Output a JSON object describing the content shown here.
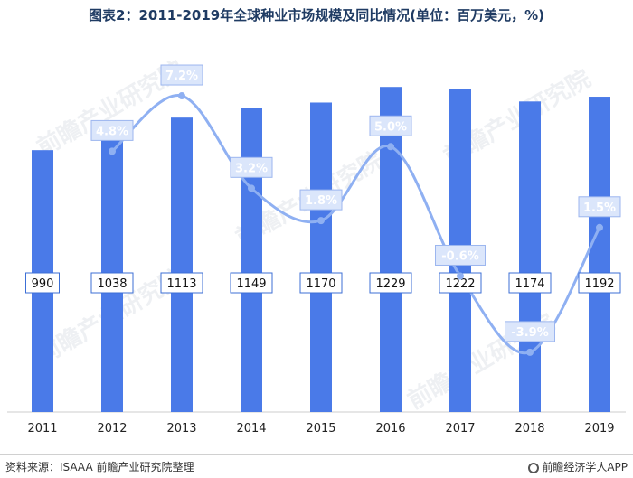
{
  "title": "图表2：2011-2019年全球种业市场规模及同比情况(单位：百万美元，%)",
  "chart_data": {
    "type": "bar",
    "categories": [
      "2011",
      "2012",
      "2013",
      "2014",
      "2015",
      "2016",
      "2017",
      "2018",
      "2019"
    ],
    "series": [
      {
        "values": [
          990,
          1038,
          1113,
          1149,
          1170,
          1229,
          1222,
          1174,
          1192
        ],
        "value_labels": [
          "990",
          "1038",
          "1113",
          "1149",
          "1170",
          "1229",
          "1222",
          "1174",
          "1192"
        ],
        "color": "#4a7ae8"
      },
      {
        "type": "line",
        "values": [
          null,
          4.8,
          7.2,
          3.2,
          1.8,
          5.0,
          -0.6,
          -3.9,
          1.5
        ],
        "value_labels": [
          null,
          "4.8%",
          "7.2%",
          "3.2%",
          "1.8%",
          "5.0%",
          "-0.6%",
          "-3.9%",
          "1.5%"
        ],
        "color": "#8fb0f2"
      }
    ],
    "ylim_bar": [
      0,
      1380
    ],
    "ylim_line": [
      -5,
      9
    ],
    "grid": false,
    "legend": "none"
  },
  "footer": {
    "source": "资料来源：ISAAA 前瞻产业研究院整理",
    "brand": "前瞻经济学人APP"
  },
  "watermark": "前瞻产业研究院"
}
